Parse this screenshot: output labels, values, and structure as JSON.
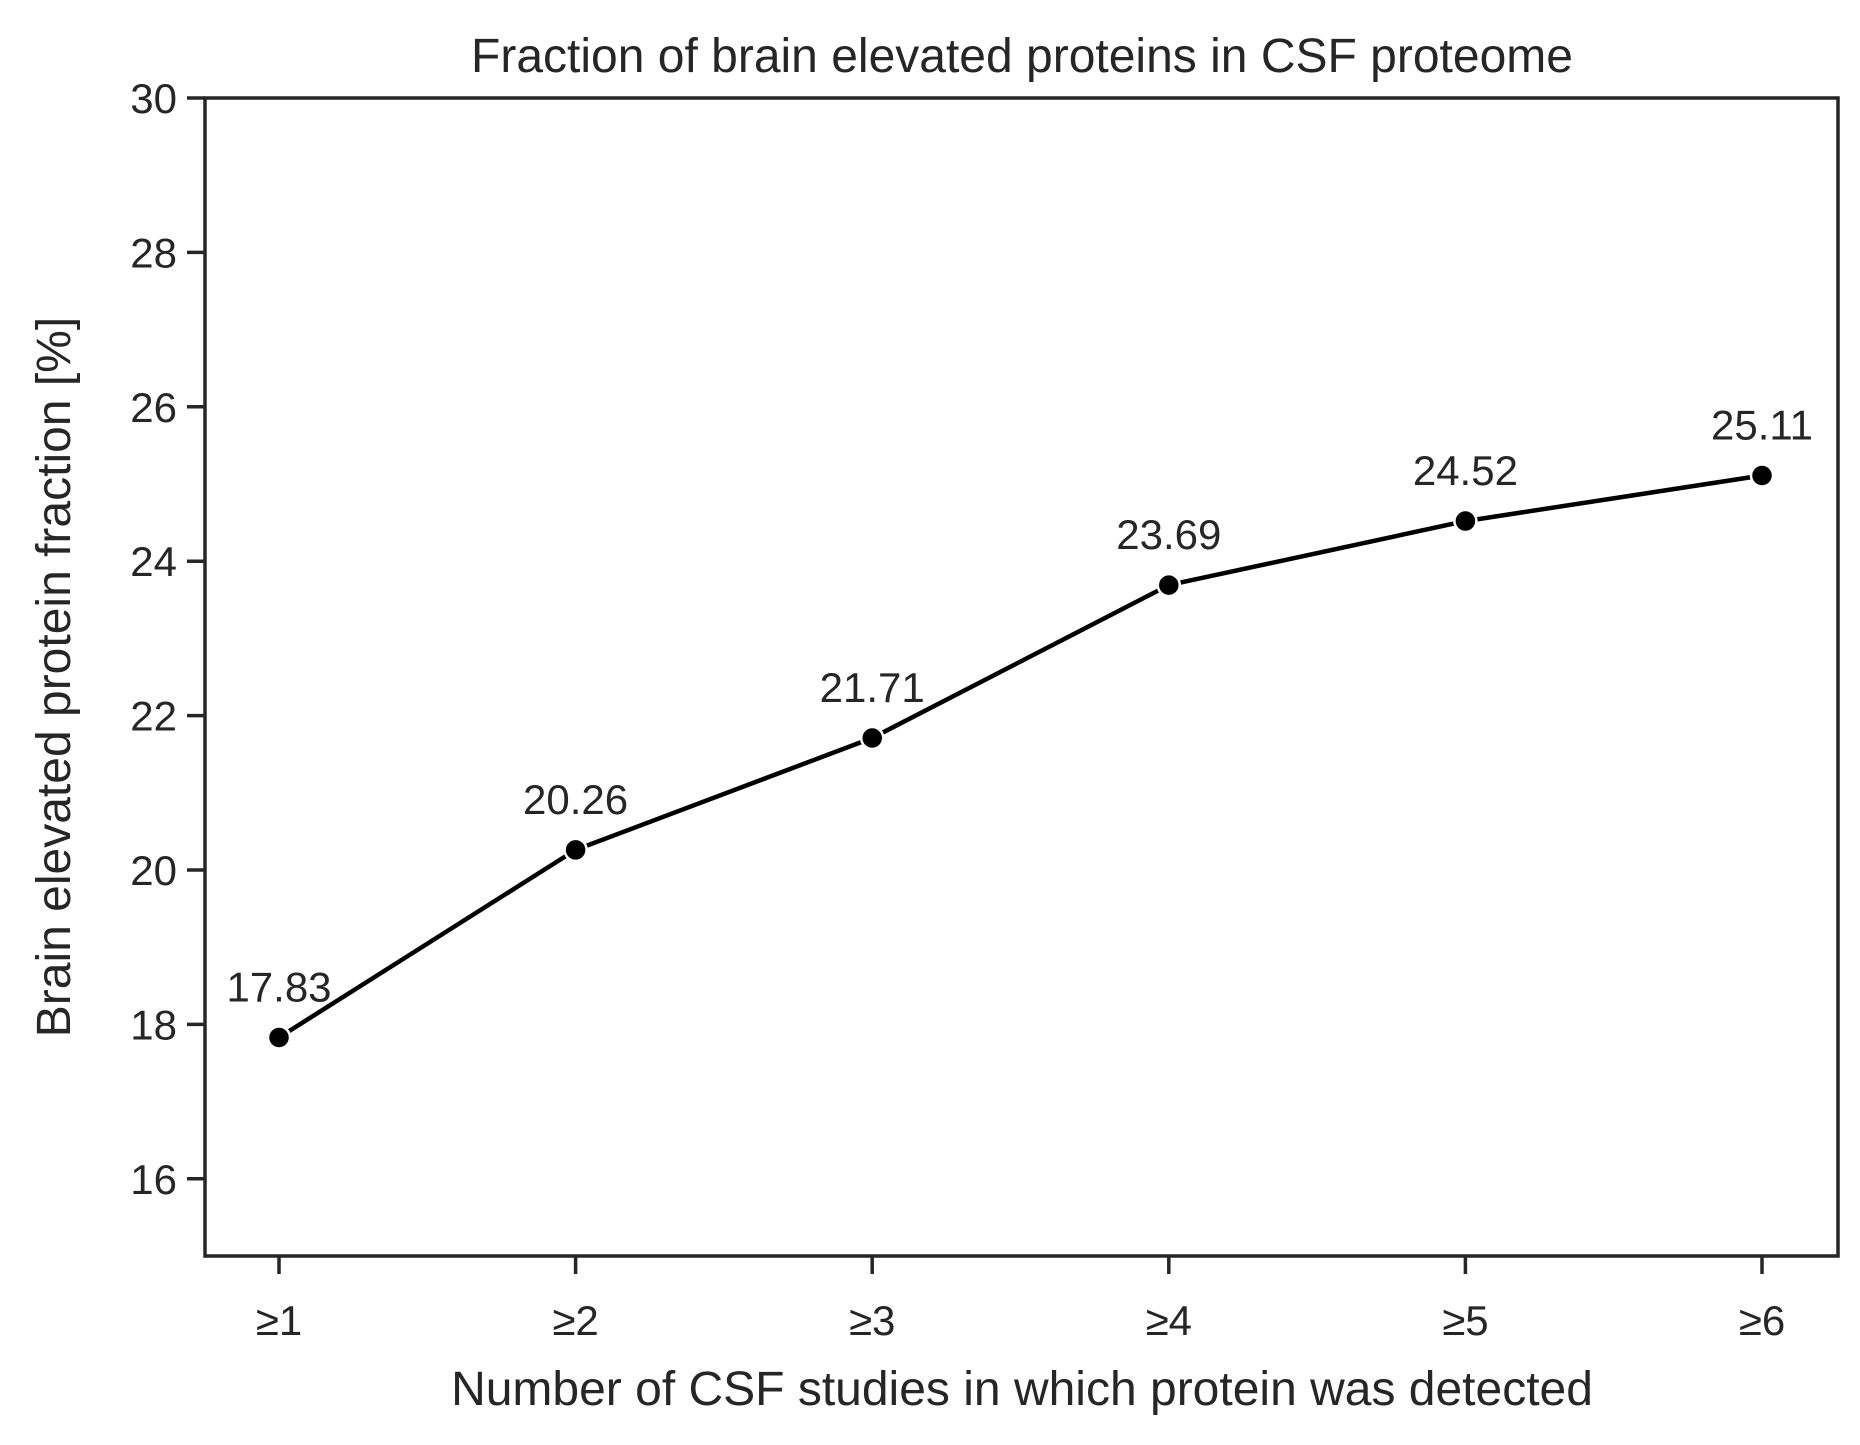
{
  "chart_data": {
    "type": "line",
    "title": "Fraction of brain elevated proteins in CSF proteome",
    "xlabel": "Number of CSF studies in which protein was detected",
    "ylabel": "Brain elevated protein fraction [%]",
    "categories": [
      "≥1",
      "≥2",
      "≥3",
      "≥4",
      "≥5",
      "≥6"
    ],
    "series": [
      {
        "values": [
          17.83,
          20.26,
          21.71,
          23.69,
          24.52,
          25.11
        ]
      }
    ],
    "data_labels": [
      "17.83",
      "20.26",
      "21.71",
      "23.69",
      "24.52",
      "25.11"
    ],
    "y_ticks": [
      16,
      18,
      20,
      22,
      24,
      26,
      28,
      30
    ],
    "y_tick_labels": [
      "16",
      "18",
      "20",
      "22",
      "24",
      "26",
      "28",
      "30"
    ],
    "ylim": [
      15,
      30
    ],
    "grid": false,
    "legend": "none",
    "colors": {
      "line": "#000000",
      "marker": "#000000",
      "marker_edge": "#ffffff",
      "axes": "#262626",
      "text": "#262626",
      "background": "#ffffff"
    }
  }
}
